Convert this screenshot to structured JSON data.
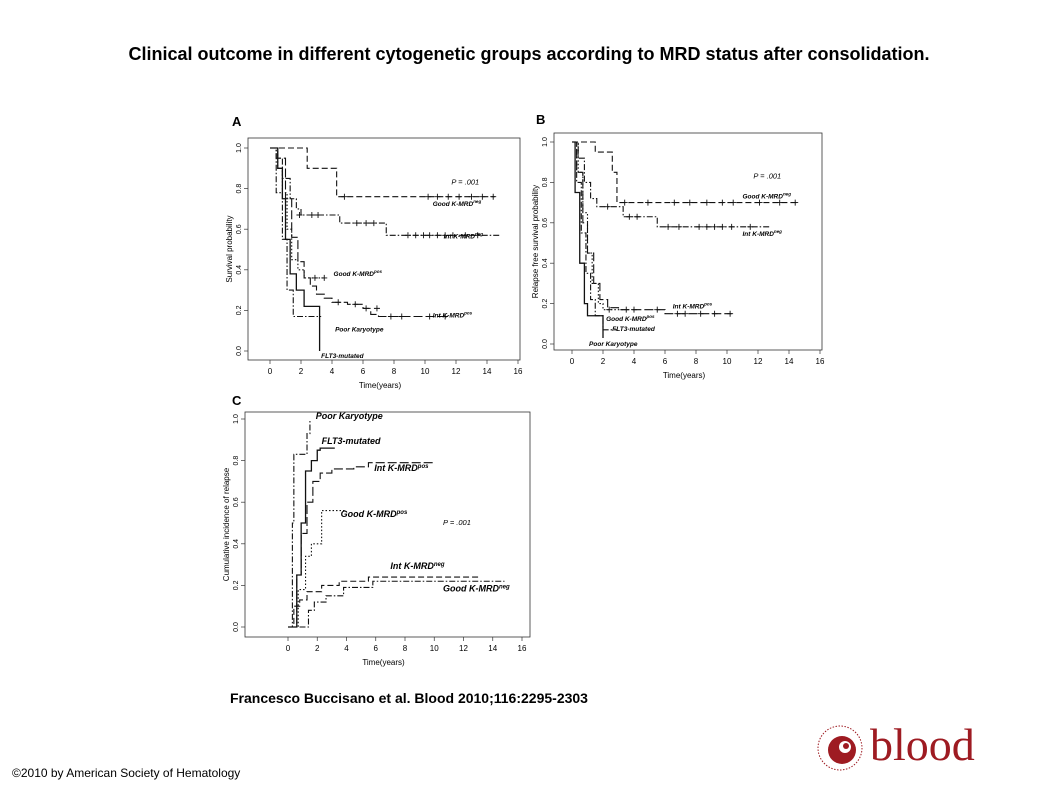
{
  "title": "Clinical outcome in different cytogenetic groups according to MRD status after consolidation.",
  "citation": "Francesco Buccisano et al. Blood 2010;116:2295-2303",
  "copyright": "©2010 by American Society of Hematology",
  "logo": {
    "word": "blood",
    "ring_text": "AMERICAN SOCIETY OF HEMATOLOGY",
    "color": "#9e1b22"
  },
  "chart_data": [
    {
      "panel": "A",
      "type": "line",
      "ylabel": "Survival probability",
      "xlabel": "Time(years)",
      "xlim": [
        0,
        16
      ],
      "ylim": [
        0,
        1
      ],
      "xticks": [
        "0",
        "2",
        "4",
        "6",
        "8",
        "10",
        "12",
        "14",
        "16"
      ],
      "yticks": [
        "0.0",
        "0.2",
        "0.4",
        "0.6",
        "0.8",
        "1.0"
      ],
      "annotation": "P = .001",
      "series": [
        {
          "name": "Good K-MRD",
          "sup": "neg",
          "style": "dash",
          "points": [
            [
              0,
              1
            ],
            [
              2,
              1
            ],
            [
              2.4,
              0.9
            ],
            [
              3.6,
              0.9
            ],
            [
              4.3,
              0.76
            ],
            [
              14.5,
              0.76
            ]
          ],
          "censor": [
            [
              4.8,
              0.76
            ],
            [
              10.2,
              0.76
            ],
            [
              10.8,
              0.76
            ],
            [
              11.5,
              0.76
            ],
            [
              12.2,
              0.76
            ],
            [
              13,
              0.76
            ],
            [
              13.7,
              0.76
            ],
            [
              14.4,
              0.76
            ]
          ]
        },
        {
          "name": "Int K-MRD",
          "sup": "neg",
          "style": "dashdot",
          "points": [
            [
              0,
              1
            ],
            [
              0.4,
              0.95
            ],
            [
              0.8,
              0.85
            ],
            [
              1.3,
              0.75
            ],
            [
              1.7,
              0.7
            ],
            [
              2,
              0.67
            ],
            [
              4.4,
              0.67
            ],
            [
              4.5,
              0.63
            ],
            [
              7.3,
              0.63
            ],
            [
              7.5,
              0.57
            ],
            [
              14.8,
              0.57
            ]
          ],
          "censor": [
            [
              1.9,
              0.67
            ],
            [
              2.7,
              0.67
            ],
            [
              3.1,
              0.67
            ],
            [
              5.6,
              0.63
            ],
            [
              6.2,
              0.63
            ],
            [
              6.7,
              0.63
            ],
            [
              8.9,
              0.57
            ],
            [
              9.4,
              0.57
            ],
            [
              9.9,
              0.57
            ],
            [
              10.3,
              0.57
            ],
            [
              10.8,
              0.57
            ],
            [
              11.3,
              0.57
            ],
            [
              11.8,
              0.57
            ],
            [
              12.6,
              0.57
            ],
            [
              13.4,
              0.57
            ]
          ]
        },
        {
          "name": "Good K-MRD",
          "sup": "pos",
          "style": "dot",
          "points": [
            [
              0,
              1
            ],
            [
              0.5,
              0.9
            ],
            [
              0.8,
              0.78
            ],
            [
              1.1,
              0.6
            ],
            [
              1.4,
              0.45
            ],
            [
              1.8,
              0.4
            ],
            [
              2.2,
              0.36
            ],
            [
              3.5,
              0.36
            ]
          ],
          "censor": [
            [
              2.9,
              0.36
            ],
            [
              3.5,
              0.36
            ]
          ]
        },
        {
          "name": "Int K-MRD",
          "sup": "pos",
          "style": "longdash",
          "points": [
            [
              0,
              1
            ],
            [
              0.5,
              0.95
            ],
            [
              1,
              0.75
            ],
            [
              1.4,
              0.56
            ],
            [
              1.8,
              0.44
            ],
            [
              2.2,
              0.36
            ],
            [
              2.6,
              0.32
            ],
            [
              3,
              0.28
            ],
            [
              3.5,
              0.26
            ],
            [
              4,
              0.24
            ],
            [
              5,
              0.23
            ],
            [
              6,
              0.21
            ],
            [
              6.5,
              0.18
            ],
            [
              7,
              0.17
            ],
            [
              11.5,
              0.17
            ]
          ],
          "censor": [
            [
              4.4,
              0.24
            ],
            [
              5.5,
              0.23
            ],
            [
              6.2,
              0.21
            ],
            [
              6.9,
              0.21
            ],
            [
              7.8,
              0.17
            ],
            [
              8.5,
              0.17
            ],
            [
              10.3,
              0.17
            ],
            [
              11.3,
              0.17
            ]
          ]
        },
        {
          "name": "Poor Karyotype",
          "style": "dashdot",
          "points": [
            [
              0,
              1
            ],
            [
              0.4,
              0.78
            ],
            [
              0.8,
              0.55
            ],
            [
              1.1,
              0.3
            ],
            [
              1.5,
              0.17
            ],
            [
              3.3,
              0.17
            ]
          ],
          "censor": []
        },
        {
          "name": "FLT3-mutated",
          "style": "solid",
          "points": [
            [
              0,
              1
            ],
            [
              0.5,
              0.9
            ],
            [
              0.8,
              0.75
            ],
            [
              1,
              0.55
            ],
            [
              1.3,
              0.38
            ],
            [
              1.7,
              0.3
            ],
            [
              2.1,
              0.3
            ],
            [
              2.2,
              0.22
            ],
            [
              3.2,
              0.22
            ],
            [
              3.2,
              0
            ]
          ],
          "censor": []
        }
      ]
    },
    {
      "panel": "B",
      "type": "line",
      "ylabel": "Relapse free survival probability",
      "xlabel": "Time(years)",
      "xlim": [
        0,
        16
      ],
      "ylim": [
        0,
        1
      ],
      "xticks": [
        "0",
        "2",
        "4",
        "6",
        "8",
        "10",
        "12",
        "14",
        "16"
      ],
      "yticks": [
        "0.0",
        "0.2",
        "0.4",
        "0.6",
        "0.8",
        "1.0"
      ],
      "annotation": "P = .001",
      "series": [
        {
          "name": "Good K-MRD",
          "sup": "neg",
          "style": "dash",
          "points": [
            [
              0,
              1
            ],
            [
              1.4,
              1
            ],
            [
              1.5,
              0.95
            ],
            [
              2.4,
              0.95
            ],
            [
              2.6,
              0.85
            ],
            [
              2.9,
              0.7
            ],
            [
              14.5,
              0.7
            ]
          ],
          "censor": [
            [
              3.4,
              0.7
            ],
            [
              4.9,
              0.7
            ],
            [
              6.6,
              0.7
            ],
            [
              7.6,
              0.7
            ],
            [
              8.7,
              0.7
            ],
            [
              9.7,
              0.7
            ],
            [
              10.4,
              0.7
            ],
            [
              12.1,
              0.7
            ],
            [
              13.4,
              0.7
            ],
            [
              14.4,
              0.7
            ]
          ]
        },
        {
          "name": "Int K-MRD",
          "sup": "neg",
          "style": "dashdot",
          "points": [
            [
              0,
              1
            ],
            [
              0.4,
              0.92
            ],
            [
              0.8,
              0.8
            ],
            [
              1.2,
              0.72
            ],
            [
              1.6,
              0.68
            ],
            [
              3.2,
              0.68
            ],
            [
              3.3,
              0.63
            ],
            [
              5.4,
              0.63
            ],
            [
              5.5,
              0.58
            ],
            [
              12.8,
              0.58
            ]
          ],
          "censor": [
            [
              2.3,
              0.68
            ],
            [
              3.7,
              0.63
            ],
            [
              4.2,
              0.63
            ],
            [
              6.2,
              0.58
            ],
            [
              6.9,
              0.58
            ],
            [
              8.2,
              0.58
            ],
            [
              8.7,
              0.58
            ],
            [
              9.2,
              0.58
            ],
            [
              9.7,
              0.58
            ],
            [
              10.3,
              0.58
            ],
            [
              11.5,
              0.58
            ]
          ]
        },
        {
          "name": "Int K-MRD",
          "sup": "pos",
          "style": "longdash",
          "points": [
            [
              0,
              1
            ],
            [
              0.3,
              0.85
            ],
            [
              0.7,
              0.6
            ],
            [
              1,
              0.45
            ],
            [
              1.4,
              0.3
            ],
            [
              1.8,
              0.22
            ],
            [
              2.3,
              0.18
            ],
            [
              3,
              0.17
            ],
            [
              5.9,
              0.17
            ],
            [
              6,
              0.15
            ],
            [
              10.3,
              0.15
            ]
          ],
          "censor": [
            [
              3.5,
              0.17
            ],
            [
              4,
              0.17
            ],
            [
              5.5,
              0.17
            ],
            [
              6.8,
              0.15
            ],
            [
              7.3,
              0.15
            ],
            [
              8.3,
              0.15
            ],
            [
              9.2,
              0.15
            ],
            [
              10.2,
              0.15
            ]
          ]
        },
        {
          "name": "Good K-MRD",
          "sup": "pos",
          "style": "dot",
          "points": [
            [
              0,
              1
            ],
            [
              0.4,
              0.85
            ],
            [
              0.7,
              0.65
            ],
            [
              1,
              0.45
            ],
            [
              1.3,
              0.3
            ],
            [
              1.7,
              0.2
            ],
            [
              2,
              0.17
            ],
            [
              3.3,
              0.17
            ]
          ],
          "censor": [
            [
              2.4,
              0.17
            ]
          ]
        },
        {
          "name": "FLT3-mutated",
          "style": "dashdot",
          "points": [
            [
              0,
              1
            ],
            [
              0.3,
              0.8
            ],
            [
              0.6,
              0.55
            ],
            [
              0.9,
              0.35
            ],
            [
              1.2,
              0.22
            ],
            [
              1.5,
              0.14
            ],
            [
              1.9,
              0.14
            ],
            [
              2,
              0.07
            ],
            [
              2.9,
              0.07
            ]
          ],
          "censor": []
        },
        {
          "name": "Poor Karyotype",
          "style": "solid",
          "points": [
            [
              0,
              1
            ],
            [
              0.2,
              0.75
            ],
            [
              0.5,
              0.4
            ],
            [
              0.8,
              0.2
            ],
            [
              1,
              0.14
            ],
            [
              1.9,
              0.14
            ],
            [
              2,
              0.03
            ]
          ],
          "censor": []
        }
      ]
    },
    {
      "panel": "C",
      "type": "line",
      "ylabel": "Cumulative incidence of relapse",
      "xlabel": "Time(years)",
      "xlim": [
        0,
        16
      ],
      "ylim": [
        0,
        1
      ],
      "xticks": [
        "0",
        "2",
        "4",
        "6",
        "8",
        "10",
        "12",
        "14",
        "16"
      ],
      "yticks": [
        "0.0",
        "0.2",
        "0.4",
        "0.6",
        "0.8",
        "1.0"
      ],
      "annotation": "P = .001",
      "series": [
        {
          "name": "Poor Karyotype",
          "style": "dashdot",
          "points": [
            [
              0,
              0
            ],
            [
              0.2,
              0
            ],
            [
              0.3,
              0.5
            ],
            [
              0.4,
              0.83
            ],
            [
              1.2,
              0.83
            ],
            [
              1.3,
              0.93
            ],
            [
              1.5,
              1
            ]
          ]
        },
        {
          "name": "FLT3-mutated",
          "style": "solid",
          "points": [
            [
              0,
              0
            ],
            [
              0.4,
              0
            ],
            [
              0.6,
              0.25
            ],
            [
              0.9,
              0.5
            ],
            [
              1.2,
              0.75
            ],
            [
              1.6,
              0.8
            ],
            [
              2,
              0.85
            ],
            [
              2.2,
              0.86
            ],
            [
              3.2,
              0.86
            ]
          ]
        },
        {
          "name": "Int K-MRD",
          "sup": "pos",
          "style": "longdash",
          "points": [
            [
              0,
              0
            ],
            [
              0.3,
              0
            ],
            [
              0.6,
              0.25
            ],
            [
              0.9,
              0.45
            ],
            [
              1.3,
              0.6
            ],
            [
              1.7,
              0.7
            ],
            [
              2.2,
              0.74
            ],
            [
              3,
              0.76
            ],
            [
              4.5,
              0.77
            ],
            [
              5.5,
              0.79
            ],
            [
              10,
              0.79
            ]
          ]
        },
        {
          "name": "Good K-MRD",
          "sup": "pos",
          "style": "dot",
          "points": [
            [
              0,
              0
            ],
            [
              0.5,
              0
            ],
            [
              0.7,
              0.18
            ],
            [
              1.2,
              0.34
            ],
            [
              1.6,
              0.4
            ],
            [
              2.2,
              0.4
            ],
            [
              2.3,
              0.56
            ],
            [
              4,
              0.56
            ]
          ]
        },
        {
          "name": "Int K-MRD",
          "sup": "neg",
          "style": "dash",
          "points": [
            [
              0,
              0
            ],
            [
              0.3,
              0
            ],
            [
              0.4,
              0.1
            ],
            [
              0.8,
              0.13
            ],
            [
              1.3,
              0.17
            ],
            [
              2.3,
              0.2
            ],
            [
              3.5,
              0.22
            ],
            [
              5.5,
              0.24
            ],
            [
              13,
              0.24
            ]
          ]
        },
        {
          "name": "Good K-MRD",
          "sup": "neg",
          "style": "dashdot",
          "points": [
            [
              0,
              0
            ],
            [
              1.3,
              0
            ],
            [
              1.4,
              0.08
            ],
            [
              1.8,
              0.12
            ],
            [
              2.6,
              0.15
            ],
            [
              3.8,
              0.19
            ],
            [
              5.8,
              0.22
            ],
            [
              14.8,
              0.22
            ]
          ]
        }
      ]
    }
  ]
}
